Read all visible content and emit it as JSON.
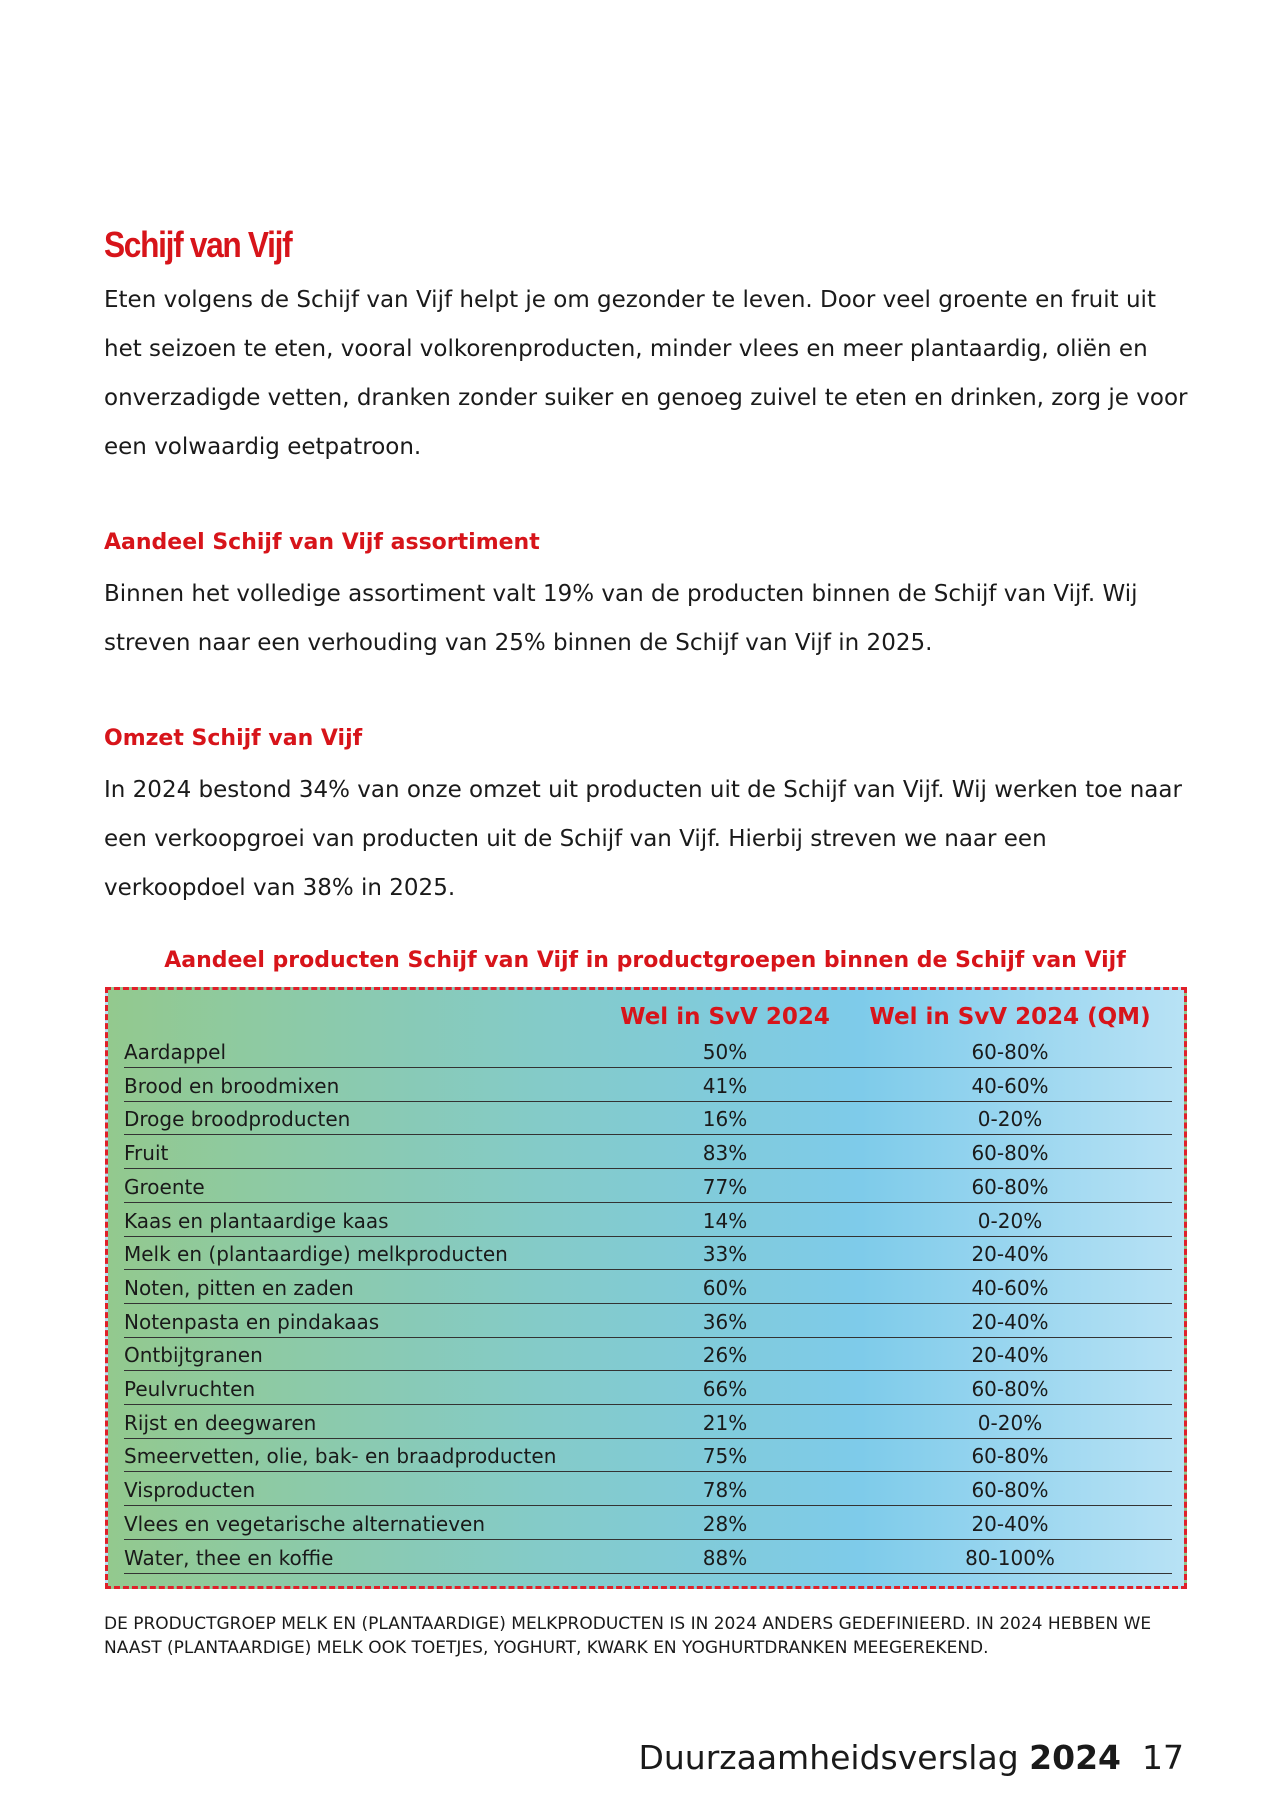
{
  "section": {
    "title": "Schijf van Vijf",
    "intro": "Eten volgens de Schijf van Vijf helpt je om gezonder te leven. Door veel groente en fruit uit het seizoen te eten, vooral volkorenproducten, minder vlees en meer plantaardig, oliën en onverzadigde vetten, dranken zonder suiker en genoeg zuivel te eten en drinken, zorg je voor een volwaardig eetpatroon.",
    "subsections": [
      {
        "heading": "Aandeel Schijf van Vijf assortiment",
        "text": "Binnen het volledige assortiment valt 19% van de producten binnen de Schijf van Vijf. Wij streven naar een verhouding van 25% binnen de Schijf van Vijf in 2025."
      },
      {
        "heading": "Omzet Schijf van Vijf",
        "text": "In 2024 bestond 34% van onze omzet uit producten uit de Schijf van Vijf. Wij werken toe naar een verkoopgroei van producten uit de Schijf van Vijf. Hierbij streven we naar een verkoopdoel van 38% in 2025."
      }
    ]
  },
  "table": {
    "caption": "Aandeel producten Schijf van Vijf in productgroepen binnen de Schijf van Vijf",
    "columns": [
      "Wel in SvV 2024",
      "Wel in SvV 2024 (QM)"
    ],
    "rows": [
      [
        "Aardappel",
        "50%",
        "60-80%"
      ],
      [
        "Brood en broodmixen",
        "41%",
        "40-60%"
      ],
      [
        "Droge broodproducten",
        "16%",
        "0-20%"
      ],
      [
        "Fruit",
        "83%",
        "60-80%"
      ],
      [
        "Groente",
        "77%",
        "60-80%"
      ],
      [
        "Kaas en plantaardige kaas",
        "14%",
        "0-20%"
      ],
      [
        "Melk en (plantaardige) melkproducten",
        "33%",
        "20-40%"
      ],
      [
        "Noten, pitten en zaden",
        "60%",
        "40-60%"
      ],
      [
        "Notenpasta en pindakaas",
        "36%",
        "20-40%"
      ],
      [
        "Ontbijtgranen",
        "26%",
        "20-40%"
      ],
      [
        "Peulvruchten",
        "66%",
        "60-80%"
      ],
      [
        "Rijst en deegwaren",
        "21%",
        "0-20%"
      ],
      [
        "Smeervetten, olie, bak- en braadproducten",
        "75%",
        "60-80%"
      ],
      [
        "Visproducten",
        "78%",
        "60-80%"
      ],
      [
        "Vlees en vegetarische alternatieven",
        "28%",
        "20-40%"
      ],
      [
        "Water, thee en koffie",
        "88%",
        "80-100%"
      ]
    ]
  },
  "footnote": "DE PRODUCTGROEP MELK EN (PLANTAARDIGE) MELKPRODUCTEN IS IN 2024 ANDERS GEDEFINIEERD. IN 2024 HEBBEN WE NAAST (PLANTAARDIGE) MELK OOK TOETJES, YOGHURT, KWARK EN YOGHURTDRANKEN MEEGEREKEND.",
  "footer": {
    "report": "Duurzaamheidsverslag",
    "year": "2024",
    "page": "17"
  }
}
